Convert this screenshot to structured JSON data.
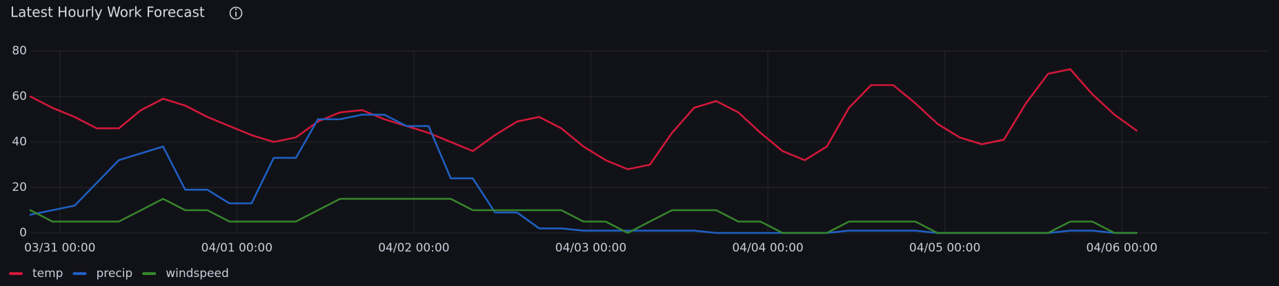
{
  "chart_data": {
    "type": "line",
    "title": "Latest Hourly Work Forecast",
    "x": [
      "03/30 20:00",
      "03/30 23:00",
      "03/31 02:00",
      "03/31 05:00",
      "03/31 08:00",
      "03/31 11:00",
      "03/31 14:00",
      "03/31 17:00",
      "03/31 20:00",
      "03/31 23:00",
      "04/01 02:00",
      "04/01 05:00",
      "04/01 08:00",
      "04/01 11:00",
      "04/01 14:00",
      "04/01 17:00",
      "04/01 20:00",
      "04/01 23:00",
      "04/02 02:00",
      "04/02 05:00",
      "04/02 08:00",
      "04/02 11:00",
      "04/02 14:00",
      "04/02 17:00",
      "04/02 20:00",
      "04/02 23:00",
      "04/03 02:00",
      "04/03 05:00",
      "04/03 08:00",
      "04/03 11:00",
      "04/03 14:00",
      "04/03 17:00",
      "04/03 20:00",
      "04/03 23:00",
      "04/04 02:00",
      "04/04 05:00",
      "04/04 08:00",
      "04/04 11:00",
      "04/04 14:00",
      "04/04 17:00",
      "04/04 20:00",
      "04/04 23:00",
      "04/05 02:00",
      "04/05 05:00",
      "04/05 08:00",
      "04/05 11:00",
      "04/05 14:00",
      "04/05 17:00",
      "04/05 20:00",
      "04/05 23:00",
      "04/06 02:00"
    ],
    "series": [
      {
        "name": "temp",
        "color": "#d4183a",
        "values": [
          60,
          55,
          51,
          46,
          46,
          54,
          59,
          56,
          51,
          47,
          43,
          40,
          42,
          49,
          53,
          54,
          50,
          47,
          44,
          40,
          36,
          43,
          49,
          51,
          46,
          38,
          32,
          28,
          30,
          44,
          55,
          58,
          53,
          44,
          36,
          32,
          38,
          55,
          65,
          65,
          57,
          48,
          42,
          39,
          41,
          57,
          70,
          72,
          61,
          52,
          45
        ]
      },
      {
        "name": "precip",
        "color": "#1f60c4",
        "values": [
          8,
          10,
          12,
          22,
          32,
          35,
          38,
          19,
          19,
          13,
          13,
          33,
          33,
          50,
          50,
          52,
          52,
          47,
          47,
          24,
          24,
          9,
          9,
          2,
          2,
          1,
          1,
          1,
          1,
          1,
          1,
          0,
          0,
          0,
          0,
          0,
          0,
          1,
          1,
          1,
          1,
          0,
          0,
          0,
          0,
          0,
          0,
          1,
          1,
          0,
          0
        ]
      },
      {
        "name": "windspeed",
        "color": "#37872d",
        "values": [
          10,
          5,
          5,
          5,
          5,
          10,
          15,
          10,
          10,
          5,
          5,
          5,
          5,
          10,
          15,
          15,
          15,
          15,
          15,
          15,
          10,
          10,
          10,
          10,
          10,
          5,
          5,
          0,
          5,
          10,
          10,
          10,
          5,
          5,
          0,
          0,
          0,
          5,
          5,
          5,
          5,
          0,
          0,
          0,
          0,
          0,
          0,
          5,
          5,
          0,
          0
        ]
      }
    ],
    "xlim": [
      "03/30 20:00",
      "04/06 20:00"
    ],
    "xticks": [
      "03/31 00:00",
      "04/01 00:00",
      "04/02 00:00",
      "04/03 00:00",
      "04/04 00:00",
      "04/05 00:00",
      "04/06 00:00"
    ],
    "ylim": [
      0,
      80
    ],
    "yticks": [
      0,
      20,
      40,
      60,
      80
    ],
    "grid": true,
    "legend": "bottom-left"
  }
}
